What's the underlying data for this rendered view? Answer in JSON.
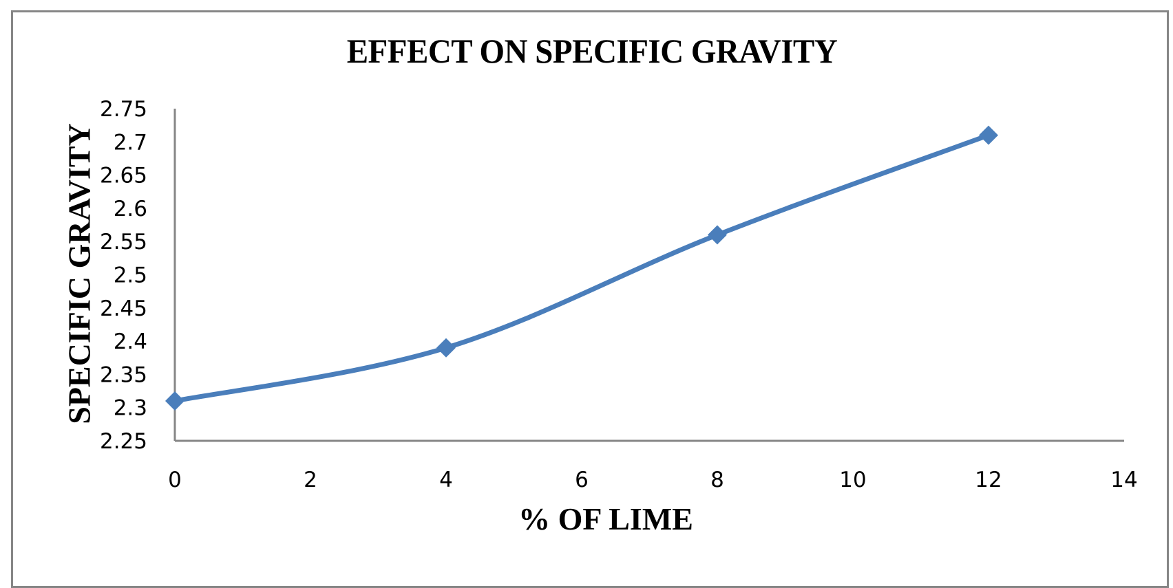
{
  "chart_data": {
    "type": "line",
    "title": "EFFECT ON SPECIFIC GRAVITY",
    "xlabel": "% OF LIME",
    "ylabel": "SPECIFIC GRAVITY",
    "x": [
      0,
      4,
      8,
      12
    ],
    "series": [
      {
        "name": "Specific Gravity",
        "values": [
          2.31,
          2.39,
          2.56,
          2.71
        ],
        "color": "#4A7EBB",
        "marker": "diamond",
        "smoothed": true
      }
    ],
    "xlim": [
      0,
      14
    ],
    "ylim": [
      2.25,
      2.75
    ],
    "xticks": [
      "0",
      "2",
      "4",
      "6",
      "8",
      "10",
      "12",
      "14"
    ],
    "yticks": [
      "2.75",
      "2.7",
      "2.65",
      "2.6",
      "2.55",
      "2.5",
      "2.45",
      "2.4",
      "2.35",
      "2.3",
      "2.25"
    ],
    "grid": false,
    "legend": "none"
  }
}
